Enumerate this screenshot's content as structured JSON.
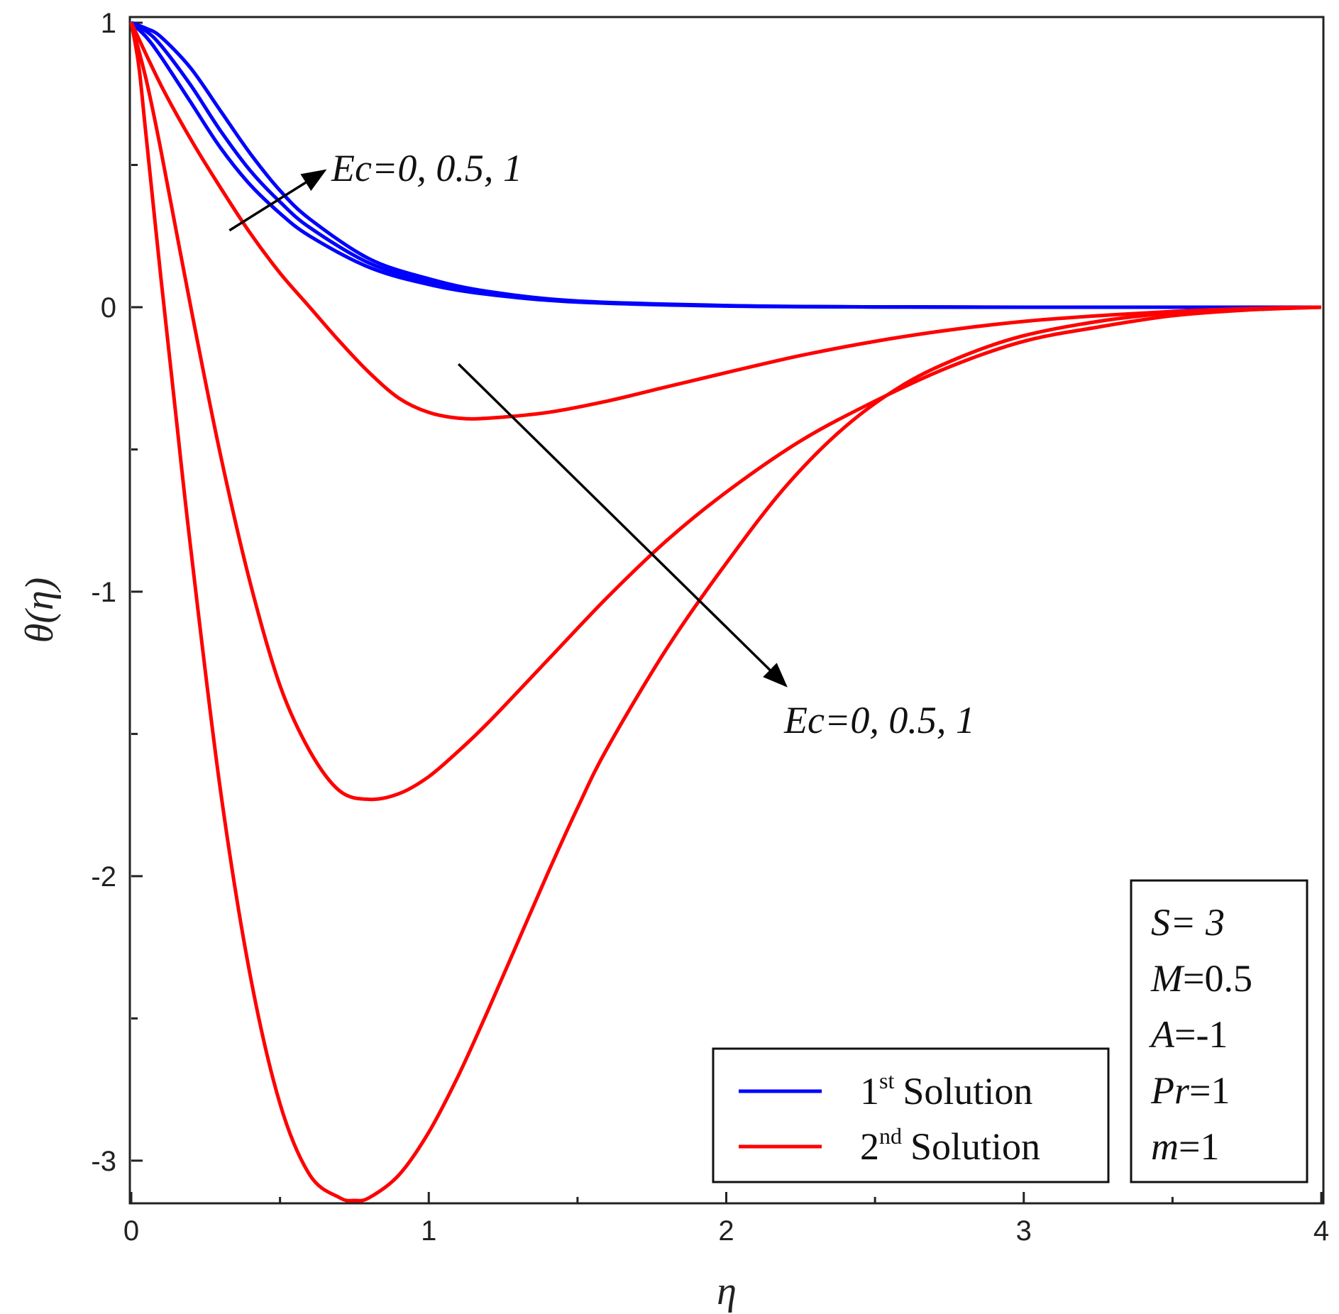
{
  "chart_data": {
    "type": "line",
    "xlabel": "η",
    "ylabel": "θ(η)",
    "xlim": [
      0,
      4
    ],
    "ylim": [
      -3.15,
      1.02
    ],
    "x_ticks": [
      0,
      1,
      2,
      3,
      4
    ],
    "x_tick_labels": [
      "0",
      "1",
      "2",
      "3",
      "4"
    ],
    "y_ticks": [
      1,
      0,
      -1,
      -2,
      -3
    ],
    "y_tick_labels": [
      "1",
      "0",
      "-1",
      "-2",
      "-3"
    ],
    "series": [
      {
        "name": "1st Solution Ec=0",
        "color": "#0000ff",
        "x": [
          0,
          0.05,
          0.1,
          0.2,
          0.3,
          0.4,
          0.5,
          0.6,
          0.8,
          1.0,
          1.2,
          1.5,
          2.0,
          2.5,
          3.0,
          3.5,
          4.0
        ],
        "y": [
          1.0,
          0.95,
          0.88,
          0.72,
          0.56,
          0.43,
          0.33,
          0.25,
          0.14,
          0.08,
          0.045,
          0.018,
          0.004,
          0.001,
          0.0,
          0.0,
          0.0
        ]
      },
      {
        "name": "1st Solution Ec=0.5",
        "color": "#0000ff",
        "x": [
          0,
          0.05,
          0.1,
          0.2,
          0.3,
          0.4,
          0.5,
          0.6,
          0.8,
          1.0,
          1.2,
          1.5,
          2.0,
          2.5,
          3.0,
          3.5,
          4.0
        ],
        "y": [
          1.0,
          0.97,
          0.92,
          0.78,
          0.62,
          0.48,
          0.37,
          0.28,
          0.155,
          0.09,
          0.05,
          0.02,
          0.005,
          0.001,
          0.0,
          0.0,
          0.0
        ]
      },
      {
        "name": "1st Solution Ec=1",
        "color": "#0000ff",
        "x": [
          0,
          0.05,
          0.1,
          0.2,
          0.3,
          0.4,
          0.5,
          0.6,
          0.8,
          1.0,
          1.2,
          1.5,
          2.0,
          2.5,
          3.0,
          3.5,
          4.0
        ],
        "y": [
          1.0,
          0.98,
          0.95,
          0.84,
          0.69,
          0.54,
          0.41,
          0.31,
          0.17,
          0.1,
          0.055,
          0.022,
          0.006,
          0.001,
          0.0,
          0.0,
          0.0
        ]
      },
      {
        "name": "2nd Solution Ec=0",
        "color": "#ff0000",
        "x": [
          0,
          0.1,
          0.2,
          0.3,
          0.4,
          0.5,
          0.6,
          0.7,
          0.8,
          0.9,
          1.0,
          1.1,
          1.2,
          1.4,
          1.6,
          1.8,
          2.0,
          2.25,
          2.5,
          2.75,
          3.0,
          3.25,
          3.5,
          3.75,
          4.0
        ],
        "y": [
          1.0,
          0.78,
          0.59,
          0.42,
          0.26,
          0.12,
          0.0,
          -0.12,
          -0.23,
          -0.32,
          -0.37,
          -0.39,
          -0.39,
          -0.37,
          -0.33,
          -0.28,
          -0.23,
          -0.17,
          -0.12,
          -0.08,
          -0.05,
          -0.03,
          -0.015,
          -0.005,
          0.0
        ]
      },
      {
        "name": "2nd Solution Ec=0.5",
        "color": "#ff0000",
        "x": [
          0,
          0.05,
          0.1,
          0.2,
          0.3,
          0.4,
          0.5,
          0.6,
          0.7,
          0.8,
          0.9,
          1.0,
          1.1,
          1.2,
          1.4,
          1.6,
          1.8,
          2.0,
          2.25,
          2.5,
          2.75,
          3.0,
          3.25,
          3.5,
          3.75,
          4.0
        ],
        "y": [
          1.0,
          0.8,
          0.55,
          0.0,
          -0.52,
          -0.97,
          -1.33,
          -1.56,
          -1.7,
          -1.73,
          -1.71,
          -1.65,
          -1.56,
          -1.46,
          -1.24,
          -1.02,
          -0.82,
          -0.65,
          -0.47,
          -0.33,
          -0.21,
          -0.12,
          -0.07,
          -0.03,
          -0.01,
          0.0
        ]
      },
      {
        "name": "2nd Solution Ec=1",
        "color": "#ff0000",
        "x": [
          0,
          0.025,
          0.05,
          0.1,
          0.15,
          0.2,
          0.3,
          0.4,
          0.5,
          0.6,
          0.7,
          0.75,
          0.8,
          0.9,
          1.0,
          1.1,
          1.2,
          1.3,
          1.4,
          1.5,
          1.6,
          1.8,
          2.0,
          2.2,
          2.4,
          2.6,
          2.8,
          3.0,
          3.25,
          3.5,
          3.75,
          4.0
        ],
        "y": [
          1.0,
          0.85,
          0.6,
          0.1,
          -0.38,
          -0.85,
          -1.7,
          -2.35,
          -2.8,
          -3.05,
          -3.13,
          -3.14,
          -3.13,
          -3.05,
          -2.9,
          -2.7,
          -2.47,
          -2.23,
          -1.99,
          -1.76,
          -1.55,
          -1.2,
          -0.9,
          -0.63,
          -0.42,
          -0.27,
          -0.17,
          -0.1,
          -0.05,
          -0.02,
          -0.005,
          0.0
        ]
      }
    ],
    "annotations": [
      {
        "text": "Ec=0, 0.5, 1",
        "near": "blue curves"
      },
      {
        "text": "Ec=0, 0.5, 1",
        "near": "red curves"
      }
    ],
    "arrows": [
      {
        "from": [
          0.33,
          0.27
        ],
        "to": [
          0.65,
          0.48
        ]
      },
      {
        "from": [
          1.1,
          -0.2
        ],
        "to": [
          2.2,
          -1.33
        ]
      }
    ],
    "legend": {
      "position": "bottom-right",
      "entries": [
        {
          "num": "1",
          "sup": "st",
          "label": "Solution",
          "color": "#0000ff"
        },
        {
          "num": "2",
          "sup": "nd",
          "label": "Solution",
          "color": "#ff0000"
        }
      ]
    },
    "parameters": [
      {
        "name": "S",
        "value": "= 3",
        "italic_value": true
      },
      {
        "name": "M",
        "value": "=0.5",
        "italic_value": false
      },
      {
        "name": "A",
        "value": "=-1",
        "italic_value": false
      },
      {
        "name": "Pr",
        "value": "=1",
        "italic_value": false
      },
      {
        "name": "m",
        "value": "=1",
        "italic_value": false
      }
    ]
  }
}
